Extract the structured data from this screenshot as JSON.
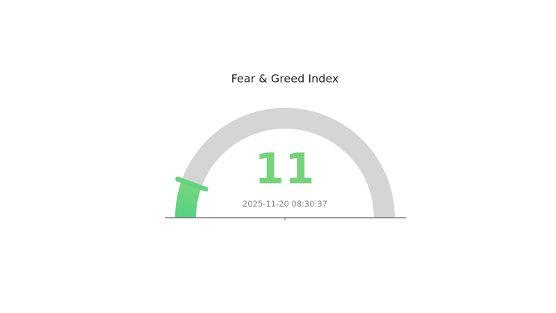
{
  "chart_data": {
    "type": "gauge",
    "title": "Fear & Greed Index",
    "value": 11,
    "min": 0,
    "max": 100,
    "timestamp": "2025-11-20 08:30:37",
    "angle_span_degrees": 180,
    "legend": "none",
    "colors": {
      "track": "#d5d5d5",
      "progress_top": "#7dd77c",
      "progress_bottom": "#55d283",
      "marker": "#62d47e",
      "value_text": "#76d379",
      "title_text": "#1f1f1f",
      "timestamp_text": "#888888",
      "baseline": "#5f5f5f",
      "background": "#ffffff"
    }
  }
}
